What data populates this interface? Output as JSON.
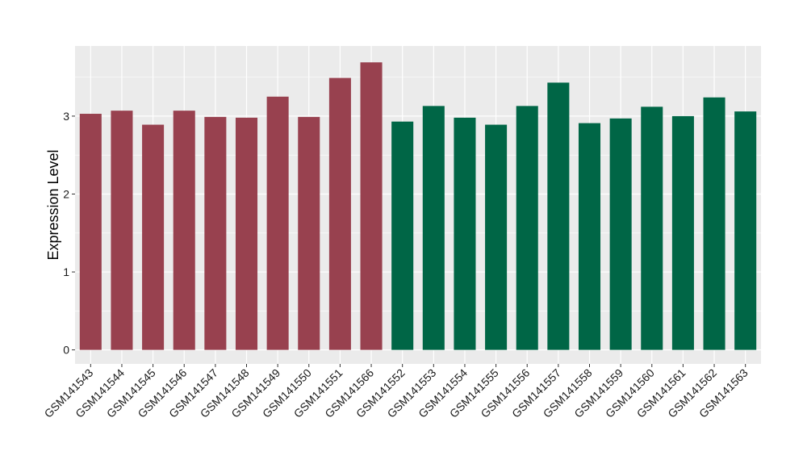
{
  "chart_data": {
    "type": "bar",
    "title": "",
    "xlabel": "",
    "ylabel": "Expression Level",
    "ylim": [
      -0.18,
      3.9
    ],
    "yticks": [
      0,
      1,
      2,
      3
    ],
    "grid": true,
    "legend": "none",
    "categories": [
      "GSM141543",
      "GSM141544",
      "GSM141545",
      "GSM141546",
      "GSM141547",
      "GSM141548",
      "GSM141549",
      "GSM141550",
      "GSM141551",
      "GSM141566",
      "GSM141552",
      "GSM141553",
      "GSM141554",
      "GSM141555",
      "GSM141556",
      "GSM141557",
      "GSM141558",
      "GSM141559",
      "GSM141560",
      "GSM141561",
      "GSM141562",
      "GSM141563"
    ],
    "values": [
      3.03,
      3.07,
      2.89,
      3.07,
      2.99,
      2.98,
      3.25,
      2.99,
      3.49,
      3.69,
      2.93,
      3.13,
      2.98,
      2.89,
      3.13,
      3.43,
      2.91,
      2.97,
      3.12,
      3.0,
      3.24,
      3.06
    ],
    "bar_colors": [
      "#98414f",
      "#98414f",
      "#98414f",
      "#98414f",
      "#98414f",
      "#98414f",
      "#98414f",
      "#98414f",
      "#98414f",
      "#98414f",
      "#006646",
      "#006646",
      "#006646",
      "#006646",
      "#006646",
      "#006646",
      "#006646",
      "#006646",
      "#006646",
      "#006646",
      "#006646",
      "#006646"
    ],
    "panel_background": "#ebebeb",
    "gridline_color": "#ffffff"
  }
}
